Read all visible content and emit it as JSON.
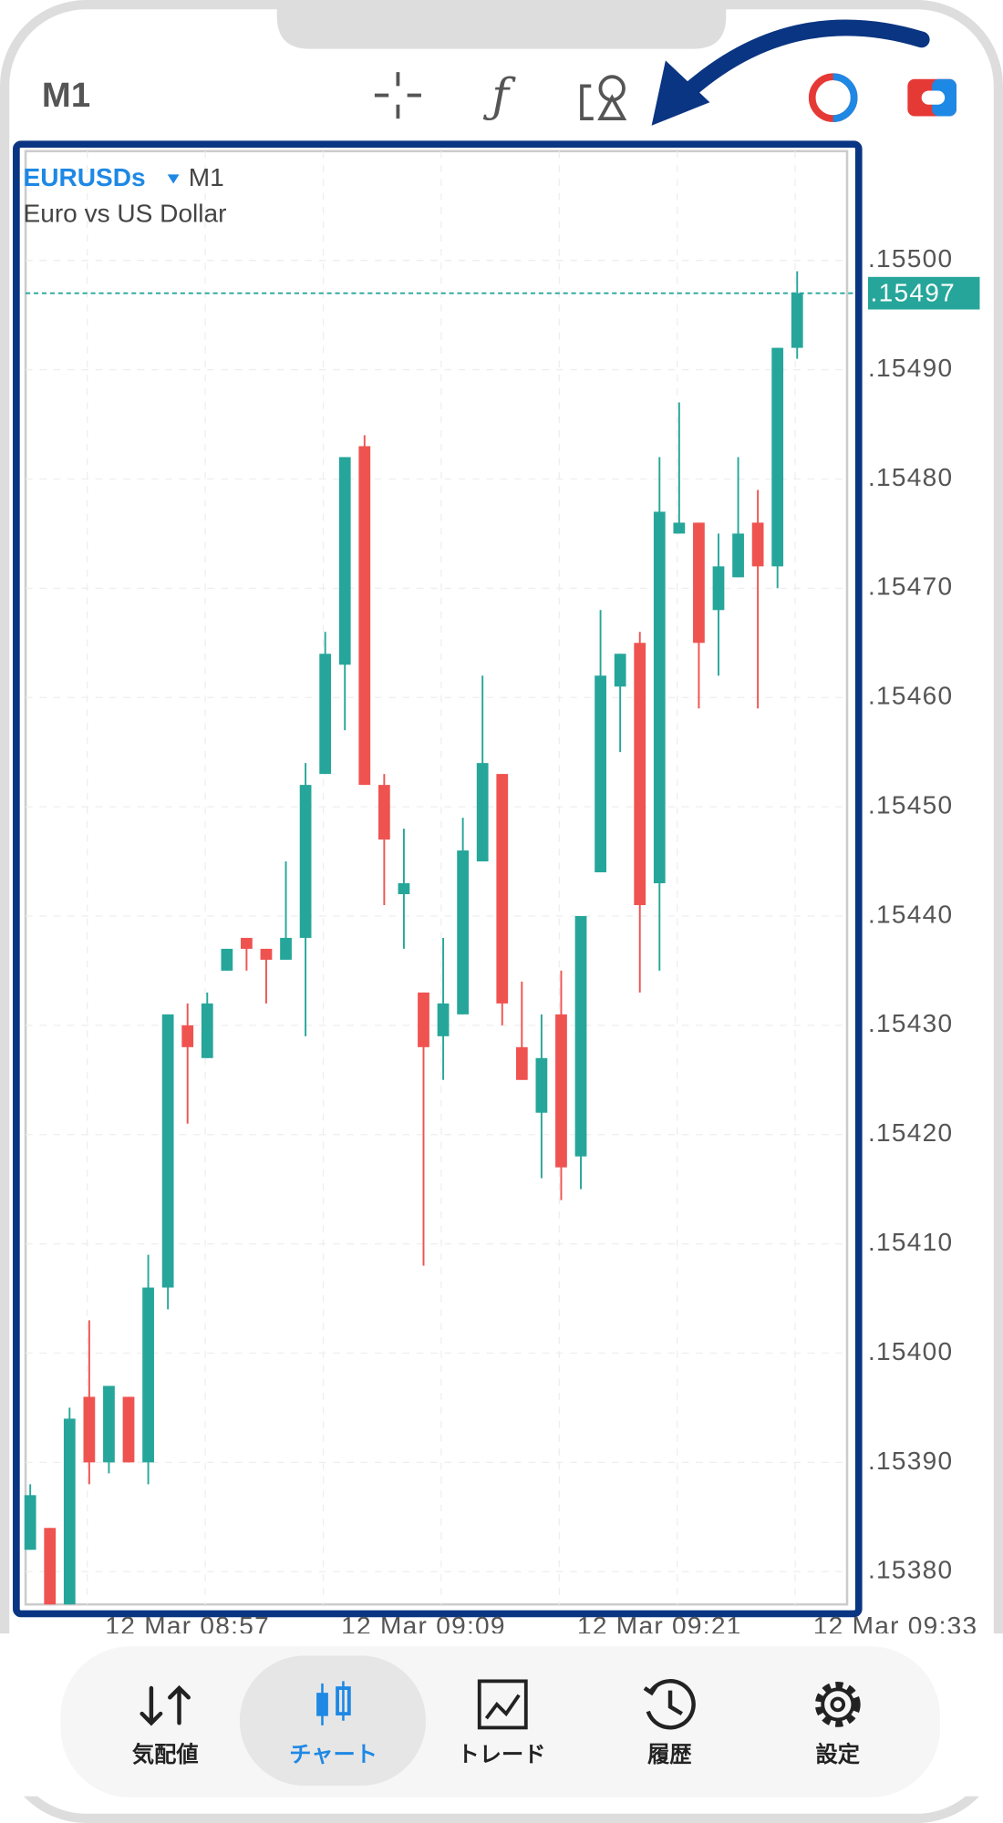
{
  "header": {
    "timeframe": "M1"
  },
  "chart_data": {
    "type": "candlestick",
    "symbol": "EURUSDs",
    "timeframe": "M1",
    "description": "Euro vs US Dollar",
    "up_color": "#26a69a",
    "down_color": "#ef5350",
    "open": [
      1.15382,
      1.15384,
      1.15377,
      1.15396,
      1.1539,
      1.15396,
      1.1539,
      1.15406,
      1.1543,
      1.15427,
      1.15435,
      1.15438,
      1.15437,
      1.15436,
      1.15438,
      1.15453,
      1.15463,
      1.15483,
      1.15452,
      1.15442,
      1.15433,
      1.15429,
      1.15431,
      1.15445,
      1.15453,
      1.15428,
      1.15422,
      1.15431,
      1.15418,
      1.15444,
      1.15461,
      1.15465,
      1.15443,
      1.15475,
      1.15476,
      1.15468,
      1.15471,
      1.15476,
      1.15472,
      1.15492
    ],
    "high": [
      1.15388,
      1.15384,
      1.15395,
      1.15403,
      1.15397,
      1.15396,
      1.15409,
      1.15431,
      1.15432,
      1.15433,
      1.15437,
      1.15438,
      1.15437,
      1.15445,
      1.15454,
      1.15466,
      1.15482,
      1.15484,
      1.15453,
      1.15448,
      1.15433,
      1.15438,
      1.15449,
      1.15462,
      1.15453,
      1.15434,
      1.15431,
      1.15435,
      1.1544,
      1.15468,
      1.15464,
      1.15466,
      1.15482,
      1.15487,
      1.15476,
      1.15475,
      1.15482,
      1.15479,
      1.15492,
      1.15499
    ],
    "low": [
      1.15382,
      1.15377,
      1.15377,
      1.15388,
      1.15389,
      1.1539,
      1.15388,
      1.15404,
      1.15421,
      1.15427,
      1.15435,
      1.15435,
      1.15432,
      1.15436,
      1.15429,
      1.15453,
      1.15457,
      1.15452,
      1.15441,
      1.15437,
      1.15408,
      1.15425,
      1.15431,
      1.15445,
      1.1543,
      1.15425,
      1.15416,
      1.15414,
      1.15415,
      1.15444,
      1.15455,
      1.15433,
      1.15435,
      1.15475,
      1.15459,
      1.15462,
      1.15471,
      1.15459,
      1.1547,
      1.15491
    ],
    "close": [
      1.15387,
      1.15377,
      1.15394,
      1.1539,
      1.15397,
      1.1539,
      1.15406,
      1.15431,
      1.15428,
      1.15432,
      1.15437,
      1.15437,
      1.15436,
      1.15438,
      1.15452,
      1.15464,
      1.15482,
      1.15452,
      1.15447,
      1.15443,
      1.15428,
      1.15432,
      1.15446,
      1.15454,
      1.15432,
      1.15425,
      1.15427,
      1.15417,
      1.1544,
      1.15462,
      1.15464,
      1.15441,
      1.15477,
      1.15476,
      1.15465,
      1.15472,
      1.15475,
      1.15472,
      1.15492,
      1.15497
    ],
    "current_price": 1.15497,
    "current_price_label": ".15497",
    "ylim": [
      1.15377,
      1.1551
    ],
    "yticks": [
      {
        "value": 1.155,
        "label": ".15500"
      },
      {
        "value": 1.1549,
        "label": ".15490"
      },
      {
        "value": 1.1548,
        "label": ".15480"
      },
      {
        "value": 1.1547,
        "label": ".15470"
      },
      {
        "value": 1.1546,
        "label": ".15460"
      },
      {
        "value": 1.1545,
        "label": ".15450"
      },
      {
        "value": 1.1544,
        "label": ".15440"
      },
      {
        "value": 1.1543,
        "label": ".15430"
      },
      {
        "value": 1.1542,
        "label": ".15420"
      },
      {
        "value": 1.1541,
        "label": ".15410"
      },
      {
        "value": 1.154,
        "label": ".15400"
      },
      {
        "value": 1.1539,
        "label": ".15390"
      },
      {
        "value": 1.1538,
        "label": ".15380"
      }
    ],
    "xticks": [
      "12 Mar 08:57",
      "12 Mar 09:09",
      "12 Mar 09:21",
      "12 Mar 09:33"
    ],
    "grid": true
  },
  "nav": {
    "items": [
      {
        "label": "気配値"
      },
      {
        "label": "チャート"
      },
      {
        "label": "トレード"
      },
      {
        "label": "履歴"
      },
      {
        "label": "設定"
      }
    ]
  }
}
